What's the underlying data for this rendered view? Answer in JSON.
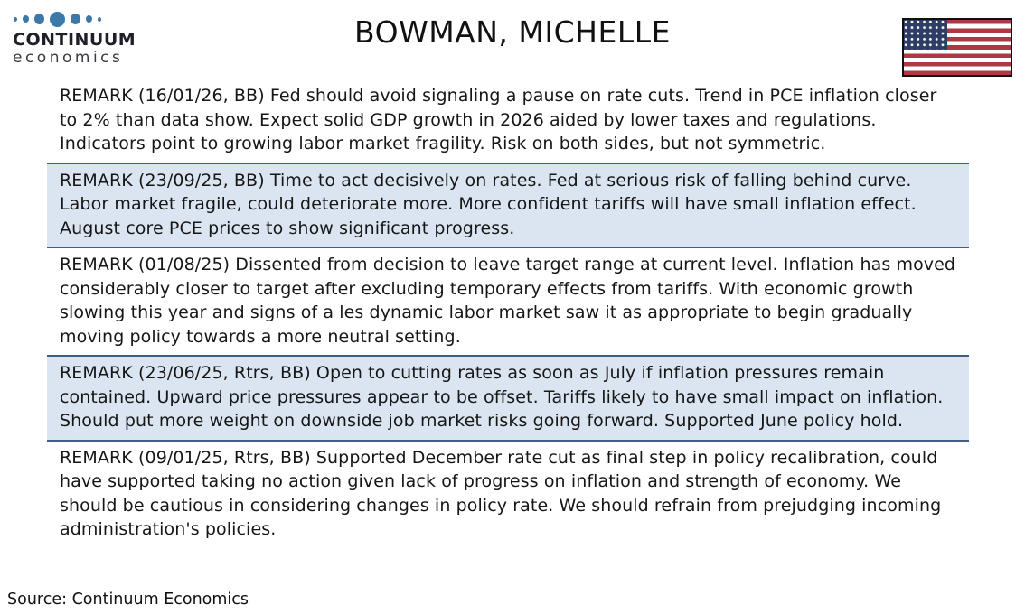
{
  "brand": {
    "name_top": "CONTINUUM",
    "name_bottom": "economics",
    "dots_color": "#3b79ab"
  },
  "header": {
    "title": "BOWMAN, MICHELLE",
    "flag": "us-flag"
  },
  "remarks": [
    {
      "text": "REMARK (16/01/26, BB) Fed should avoid signaling a pause on rate cuts. Trend in PCE inflation closer to 2% than data show. Expect solid GDP growth in 2026 aided by lower taxes and regulations. Indicators point to growing labor market fragility. Risk on both sides, but not symmetric.",
      "highlighted": false
    },
    {
      "text": "REMARK (23/09/25, BB) Time to act decisively on rates. Fed at serious risk of falling behind curve. Labor market fragile, could deteriorate more. More confident tariffs will have small inflation effect. August core PCE prices to show significant progress.",
      "highlighted": true
    },
    {
      "text": "REMARK (01/08/25) Dissented from decision to leave target range at current level. Inflation has moved considerably closer to target after excluding temporary effects from tariffs. With economic growth slowing this year and signs of a les dynamic labor market saw it as appropriate to begin gradually moving policy towards a more neutral setting.",
      "highlighted": false
    },
    {
      "text": "REMARK (23/06/25, Rtrs, BB) Open to cutting rates as soon as July if inflation pressures remain contained. Upward price pressures appear to be offset. Tariffs likely to have small impact on inflation. Should put more weight on downside job market risks going forward. Supported June policy hold.",
      "highlighted": true
    },
    {
      "text": "REMARK (09/01/25, Rtrs, BB) Supported December rate cut as final step in policy recalibration, could have supported taking no action given lack of progress on inflation and strength of economy. We should be cautious in considering changes in policy rate. We should refrain from prejudging incoming administration's policies.",
      "highlighted": false
    }
  ],
  "footer": {
    "source_label": "Source: Continuum Economics"
  },
  "colors": {
    "highlight_bg": "#dbe5f1",
    "divider": "#3f5e86",
    "flag_red": "#ab3a45",
    "flag_navy": "#2e3d66",
    "logo_blue": "#3b79ab"
  }
}
